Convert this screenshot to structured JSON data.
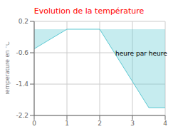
{
  "chart_data": {
    "type": "area",
    "title": "Evolution de la température",
    "annotation": "heure par heure",
    "ylabel": "Température en °C",
    "x": [
      0,
      1,
      2,
      3.5,
      4
    ],
    "values": [
      -0.5,
      0.0,
      0.0,
      -2.0,
      -2.0
    ],
    "xlim": [
      0,
      4
    ],
    "ylim": [
      -2.2,
      0.2
    ],
    "xticks": [
      0,
      1,
      2,
      3,
      4
    ],
    "yticks": [
      0.2,
      -0.6,
      -1.4,
      -2.2
    ],
    "color": "#5bc8d2",
    "grid": true
  }
}
